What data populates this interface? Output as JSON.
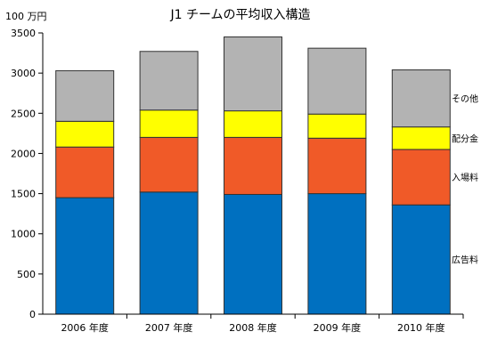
{
  "chart_data": {
    "type": "bar",
    "stacked": true,
    "title": "J1 チームの平均収入構造",
    "unit_label": "100 万円",
    "categories": [
      "2006 年度",
      "2007 年度",
      "2008 年度",
      "2009 年度",
      "2010 年度"
    ],
    "series": [
      {
        "name": "広告料",
        "color": "#0070c0",
        "values": [
          1450,
          1520,
          1490,
          1500,
          1360
        ]
      },
      {
        "name": "入場料",
        "color": "#f05a28",
        "values": [
          630,
          680,
          710,
          690,
          690
        ]
      },
      {
        "name": "配分金",
        "color": "#ffff00",
        "values": [
          320,
          340,
          330,
          300,
          280
        ]
      },
      {
        "name": "その他",
        "color": "#b3b3b3",
        "values": [
          630,
          730,
          920,
          820,
          710
        ]
      }
    ],
    "y_ticks": [
      "0",
      "500",
      "1000",
      "1500",
      "2000",
      "2500",
      "3000",
      "3500"
    ],
    "ylim": [
      0,
      3500
    ],
    "grid": false,
    "legend": "right, labels beside bars"
  }
}
